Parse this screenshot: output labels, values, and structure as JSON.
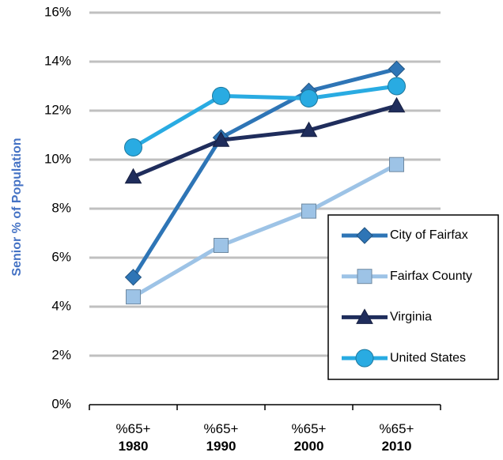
{
  "chart_data": {
    "type": "line",
    "y_label": "Senior % of Population",
    "categories": [
      [
        "%65+",
        "1980"
      ],
      [
        "%65+",
        "1990"
      ],
      [
        "%65+",
        "2000"
      ],
      [
        "%65+",
        "2010"
      ]
    ],
    "series": [
      {
        "name": "City of Fairfax",
        "color": "#2e75b6",
        "marker": "diamond",
        "values": [
          5.2,
          10.9,
          12.8,
          13.7
        ]
      },
      {
        "name": "Fairfax County",
        "color": "#9dc3e6",
        "marker": "square",
        "values": [
          4.4,
          6.5,
          7.9,
          9.8
        ]
      },
      {
        "name": "Virginia",
        "color": "#1f2d5c",
        "marker": "triangle",
        "values": [
          9.3,
          10.8,
          11.2,
          12.2
        ]
      },
      {
        "name": "United States",
        "color": "#29abe2",
        "marker": "circle",
        "values": [
          10.5,
          12.6,
          12.5,
          13.0
        ]
      }
    ],
    "ylim": [
      0,
      16
    ],
    "yticks": [
      {
        "value": 0,
        "label": "0%"
      },
      {
        "value": 2,
        "label": "2%"
      },
      {
        "value": 4,
        "label": "4%"
      },
      {
        "value": 6,
        "label": "6%"
      },
      {
        "value": 8,
        "label": "8%"
      },
      {
        "value": 10,
        "label": "10%"
      },
      {
        "value": 12,
        "label": "12%"
      },
      {
        "value": 14,
        "label": "14%"
      },
      {
        "value": 16,
        "label": "16%"
      }
    ],
    "grid": true,
    "legend": "right"
  }
}
